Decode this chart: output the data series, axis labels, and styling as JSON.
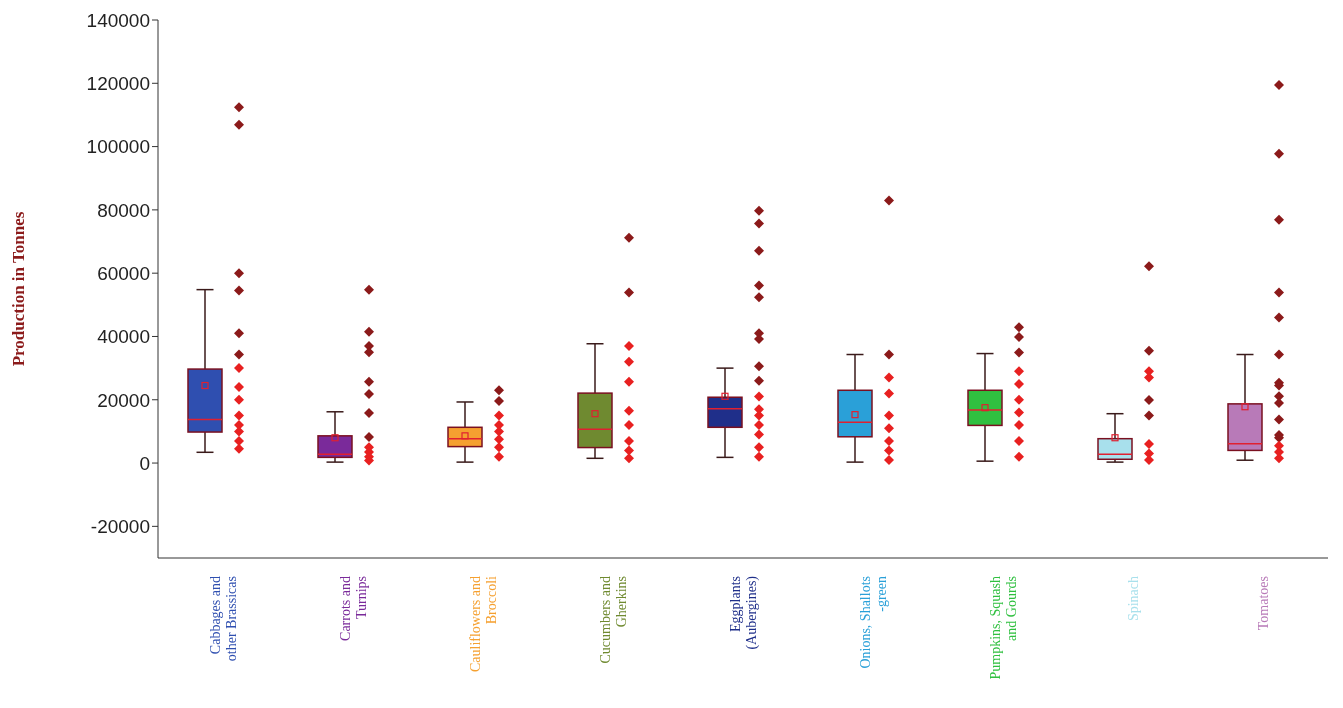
{
  "chart_data": {
    "type": "box",
    "ylabel": "Production in Tonnes",
    "ylim": [
      -30000,
      140000
    ],
    "yticks": [
      -20000,
      0,
      20000,
      40000,
      60000,
      80000,
      100000,
      120000,
      140000
    ],
    "marker": "diamond",
    "categories": [
      "Cabbages and other Brassicas",
      "Carrots and Turnips",
      "Cauliflowers and Broccoli",
      "Cucumbers and Gherkins",
      "Eggplants (Aubergines)",
      "Onions, Shallots -green",
      "Pumpkins, Squash and Gourds",
      "Spinach",
      "Tomatoes"
    ],
    "colors": [
      "#2f4fb0",
      "#7a2a9a",
      "#f5a030",
      "#6f8a30",
      "#1f2f8a",
      "#2aa0d8",
      "#30c040",
      "#a8e0ec",
      "#b87ab8"
    ],
    "boxes": [
      {
        "low": 3400,
        "q1": 9800,
        "median": 13800,
        "q3": 29700,
        "high": 54800,
        "mean": 24500
      },
      {
        "low": 300,
        "q1": 1800,
        "median": 2800,
        "q3": 8600,
        "high": 16200,
        "mean": 8000
      },
      {
        "low": 300,
        "q1": 5200,
        "median": 7700,
        "q3": 11300,
        "high": 19300,
        "mean": 8600
      },
      {
        "low": 1500,
        "q1": 4900,
        "median": 10700,
        "q3": 22100,
        "high": 37700,
        "mean": 15600
      },
      {
        "low": 1800,
        "q1": 11300,
        "median": 17200,
        "q3": 20800,
        "high": 30000,
        "mean": 21100
      },
      {
        "low": 300,
        "q1": 8300,
        "median": 12900,
        "q3": 23000,
        "high": 34300,
        "mean": 15300
      },
      {
        "low": 600,
        "q1": 11900,
        "median": 16800,
        "q3": 23000,
        "high": 34600,
        "mean": 17500
      },
      {
        "low": 300,
        "q1": 1200,
        "median": 2800,
        "q3": 7700,
        "high": 15600,
        "mean": 8000
      },
      {
        "low": 900,
        "q1": 4000,
        "median": 6100,
        "q3": 18700,
        "high": 34300,
        "mean": 17800
      }
    ],
    "series": [
      {
        "type": "scatter",
        "color": "#8b1a1a",
        "x": [
          "Cabbages and other Brassicas",
          "Cabbages and other Brassicas",
          "Cabbages and other Brassicas",
          "Cabbages and other Brassicas",
          "Cabbages and other Brassicas",
          "Cabbages and other Brassicas",
          "Carrots and Turnips",
          "Carrots and Turnips",
          "Carrots and Turnips",
          "Carrots and Turnips",
          "Carrots and Turnips",
          "Carrots and Turnips",
          "Carrots and Turnips",
          "Carrots and Turnips",
          "Cauliflowers and Broccoli",
          "Cauliflowers and Broccoli",
          "Cucumbers and Gherkins",
          "Cucumbers and Gherkins",
          "Eggplants (Aubergines)",
          "Eggplants (Aubergines)",
          "Eggplants (Aubergines)",
          "Eggplants (Aubergines)",
          "Eggplants (Aubergines)",
          "Eggplants (Aubergines)",
          "Eggplants (Aubergines)",
          "Eggplants (Aubergines)",
          "Eggplants (Aubergines)",
          "Onions, Shallots -green",
          "Onions, Shallots -green",
          "Pumpkins, Squash and Gourds",
          "Pumpkins, Squash and Gourds",
          "Pumpkins, Squash and Gourds",
          "Spinach",
          "Spinach",
          "Spinach",
          "Spinach",
          "Tomatoes",
          "Tomatoes",
          "Tomatoes",
          "Tomatoes",
          "Tomatoes",
          "Tomatoes",
          "Tomatoes",
          "Tomatoes",
          "Tomatoes",
          "Tomatoes",
          "Tomatoes",
          "Tomatoes",
          "Tomatoes"
        ],
        "values": [
          112400,
          106900,
          60000,
          54500,
          41000,
          34300,
          54800,
          41500,
          37000,
          35000,
          25700,
          21800,
          15800,
          8200,
          23000,
          19600,
          71200,
          53900,
          79700,
          75700,
          67100,
          56100,
          52400,
          41000,
          39200,
          30600,
          26000,
          83000,
          34300,
          42900,
          39800,
          34900,
          62200,
          35500,
          19900,
          15000,
          119500,
          97700,
          76900,
          53900,
          46000,
          34300,
          25400,
          24500,
          21100,
          19000,
          13800,
          8900,
          8000
        ]
      },
      {
        "type": "scatter",
        "color": "#e82020",
        "x": [
          "Cabbages and other Brassicas",
          "Cabbages and other Brassicas",
          "Cabbages and other Brassicas",
          "Cabbages and other Brassicas",
          "Cabbages and other Brassicas",
          "Cabbages and other Brassicas",
          "Cabbages and other Brassicas",
          "Cabbages and other Brassicas",
          "Carrots and Turnips",
          "Carrots and Turnips",
          "Carrots and Turnips",
          "Carrots and Turnips",
          "Cauliflowers and Broccoli",
          "Cauliflowers and Broccoli",
          "Cauliflowers and Broccoli",
          "Cauliflowers and Broccoli",
          "Cauliflowers and Broccoli",
          "Cauliflowers and Broccoli",
          "Cucumbers and Gherkins",
          "Cucumbers and Gherkins",
          "Cucumbers and Gherkins",
          "Cucumbers and Gherkins",
          "Cucumbers and Gherkins",
          "Cucumbers and Gherkins",
          "Cucumbers and Gherkins",
          "Cucumbers and Gherkins",
          "Eggplants (Aubergines)",
          "Eggplants (Aubergines)",
          "Eggplants (Aubergines)",
          "Eggplants (Aubergines)",
          "Eggplants (Aubergines)",
          "Eggplants (Aubergines)",
          "Eggplants (Aubergines)",
          "Onions, Shallots -green",
          "Onions, Shallots -green",
          "Onions, Shallots -green",
          "Onions, Shallots -green",
          "Onions, Shallots -green",
          "Onions, Shallots -green",
          "Onions, Shallots -green",
          "Pumpkins, Squash and Gourds",
          "Pumpkins, Squash and Gourds",
          "Pumpkins, Squash and Gourds",
          "Pumpkins, Squash and Gourds",
          "Pumpkins, Squash and Gourds",
          "Pumpkins, Squash and Gourds",
          "Pumpkins, Squash and Gourds",
          "Spinach",
          "Spinach",
          "Spinach",
          "Spinach",
          "Spinach",
          "Tomatoes",
          "Tomatoes",
          "Tomatoes"
        ],
        "values": [
          30000,
          24000,
          20000,
          15000,
          12000,
          10000,
          7000,
          4500,
          5000,
          3500,
          2000,
          800,
          15000,
          12000,
          10000,
          7500,
          5000,
          2000,
          37000,
          32000,
          25700,
          16500,
          12000,
          7000,
          4000,
          1500,
          21000,
          17000,
          15000,
          12000,
          9000,
          5000,
          2000,
          27000,
          22000,
          15000,
          11000,
          7000,
          4000,
          1000,
          29000,
          25000,
          20000,
          16000,
          12000,
          7000,
          2000,
          29000,
          27000,
          6000,
          3000,
          1000,
          1500,
          3500,
          5500
        ]
      }
    ]
  }
}
